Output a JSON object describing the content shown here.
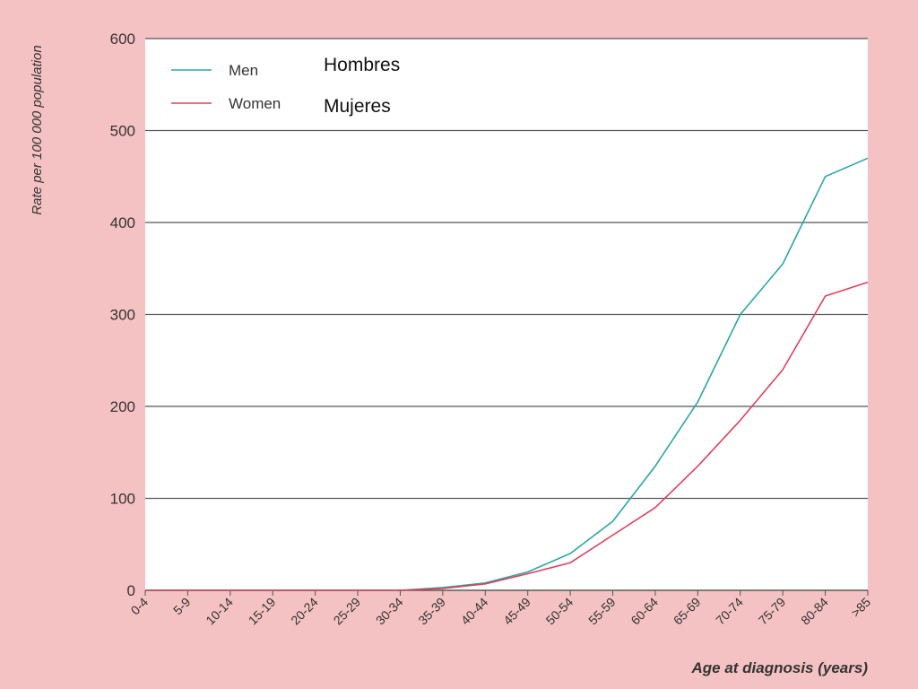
{
  "colors": {
    "slide_background": "#f4c2c2",
    "plot_background": "#ffffff",
    "gridline": "#555555",
    "men": "#2aa6a6",
    "women": "#e0405a",
    "text": "#333333"
  },
  "annotations": {
    "men_translation": "Hombres",
    "women_translation": "Mujeres"
  },
  "chart_data": {
    "type": "line",
    "title": "",
    "xlabel": "Age at diagnosis (years)",
    "ylabel": "Rate per 100 000 population",
    "ylim": [
      0,
      600
    ],
    "yticks": [
      0,
      100,
      200,
      300,
      400,
      500,
      600
    ],
    "grid": true,
    "legend_position": "top-left",
    "categories": [
      "0-4",
      "5-9",
      "10-14",
      "15-19",
      "20-24",
      "25-29",
      "30-34",
      "35-39",
      "40-44",
      "45-49",
      "50-54",
      "55-59",
      "60-64",
      "65-69",
      "70-74",
      "75-79",
      "80-84",
      ">85"
    ],
    "series": [
      {
        "name": "Men",
        "color": "#2aa6a6",
        "values": [
          0,
          0,
          0,
          0,
          0,
          0,
          0,
          3,
          8,
          20,
          40,
          75,
          135,
          205,
          300,
          355,
          450,
          470
        ]
      },
      {
        "name": "Women",
        "color": "#e0405a",
        "values": [
          0,
          0,
          0,
          0,
          0,
          0,
          0,
          2,
          7,
          18,
          30,
          60,
          90,
          135,
          185,
          240,
          320,
          335
        ]
      }
    ]
  }
}
